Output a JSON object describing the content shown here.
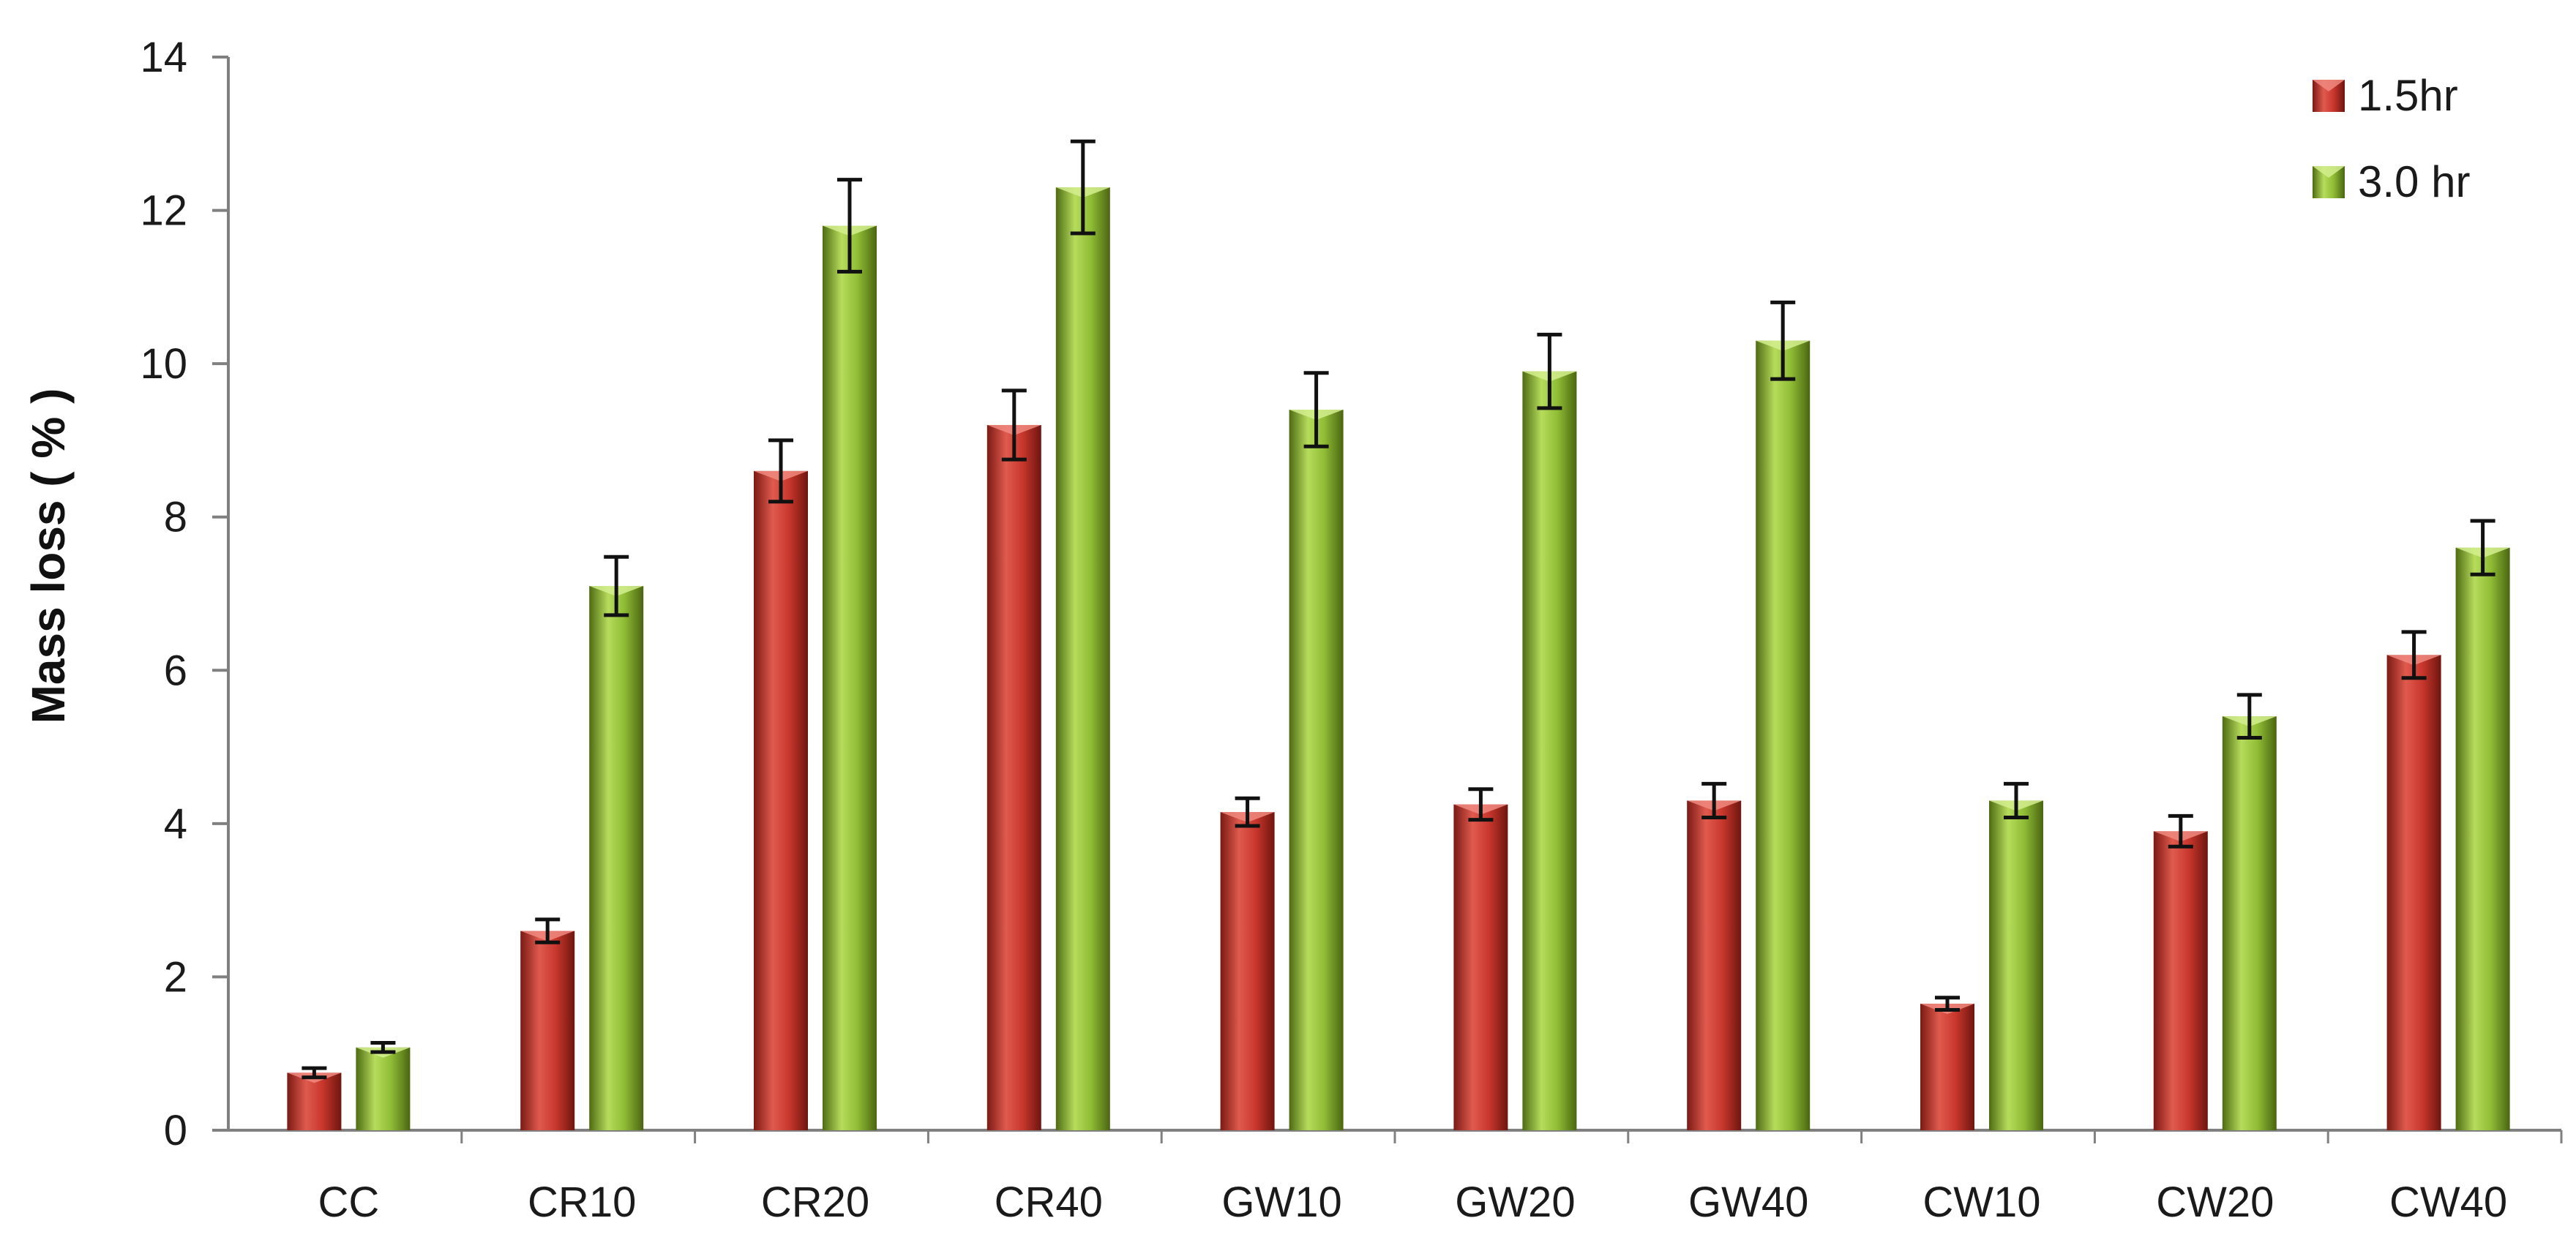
{
  "chart_data": {
    "type": "bar",
    "categories": [
      "CC",
      "CR10",
      "CR20",
      "CR40",
      "GW10",
      "GW20",
      "GW40",
      "CW10",
      "CW20",
      "CW40"
    ],
    "series": [
      {
        "name": "1.5hr",
        "color": "#c0392b",
        "values": [
          0.75,
          2.6,
          8.6,
          9.2,
          4.15,
          4.25,
          4.3,
          1.65,
          3.9,
          6.2
        ],
        "errors": [
          0.06,
          0.15,
          0.4,
          0.45,
          0.18,
          0.2,
          0.22,
          0.08,
          0.2,
          0.3
        ]
      },
      {
        "name": "3.0 hr",
        "color": "#7fa82e",
        "values": [
          1.08,
          7.1,
          11.8,
          12.3,
          9.4,
          9.9,
          10.3,
          4.3,
          5.4,
          7.6
        ],
        "errors": [
          0.06,
          0.38,
          0.6,
          0.6,
          0.48,
          0.48,
          0.5,
          0.22,
          0.28,
          0.35
        ]
      }
    ],
    "ylabel": "Mass  loss ( % )",
    "ylim": [
      0,
      14
    ],
    "yticks": [
      0,
      2,
      4,
      6,
      8,
      10,
      12,
      14
    ],
    "grid": false,
    "legend": "top-right",
    "error_bars": true
  }
}
